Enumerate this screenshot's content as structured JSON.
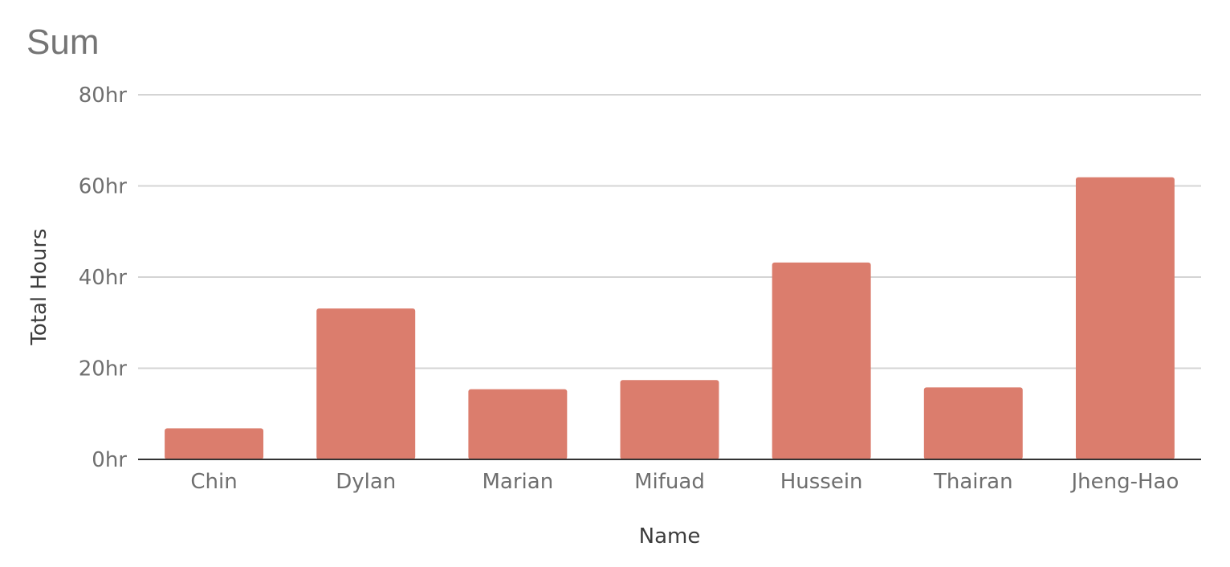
{
  "chart_data": {
    "type": "bar",
    "title": "Sum",
    "xlabel": "Name",
    "ylabel": "Total Hours",
    "categories": [
      "Chin",
      "Dylan",
      "Marian",
      "Mifuad",
      "Hussein",
      "Thairan",
      "Jheng-Hao"
    ],
    "series": [
      {
        "values": [
          6.8,
          33.1,
          15.4,
          17.4,
          43.2,
          15.8,
          61.9
        ]
      }
    ],
    "ylim": [
      0,
      80
    ],
    "yticks": [
      0,
      20,
      40,
      60,
      80
    ],
    "ytick_labels": [
      "0hr",
      "20hr",
      "40hr",
      "60hr",
      "80hr"
    ],
    "grid": true,
    "legend": "none",
    "colors": {
      "bar": "#db7d6d",
      "grid": "#d4d4d4",
      "axis": "#333333",
      "title": "#757575"
    }
  }
}
